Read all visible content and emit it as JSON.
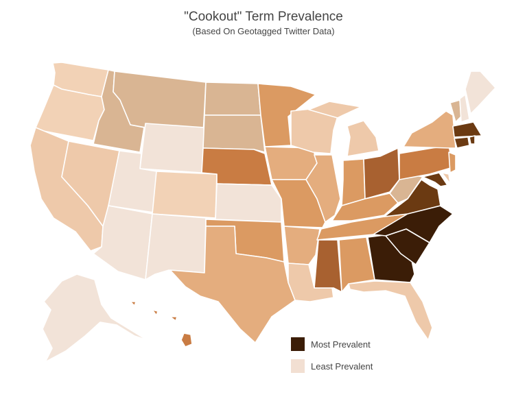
{
  "title": "\"Cookout\" Term Prevalence",
  "subtitle": "(Based On Geotagged Twitter Data)",
  "legend": {
    "most": {
      "label": "Most Prevalent",
      "color": "#3b1d07"
    },
    "least": {
      "label": "Least Prevalent",
      "color": "#f2dfd2"
    }
  },
  "colors": {
    "c1": "#f2e3d8",
    "c2": "#f2d2b6",
    "c3": "#eec9aa",
    "c4": "#d9b593",
    "c5": "#e4ad7e",
    "c6": "#db9a62",
    "c7": "#c97c43",
    "c8": "#a86130",
    "c9": "#6b3a12",
    "c10": "#3b1d07"
  }
}
